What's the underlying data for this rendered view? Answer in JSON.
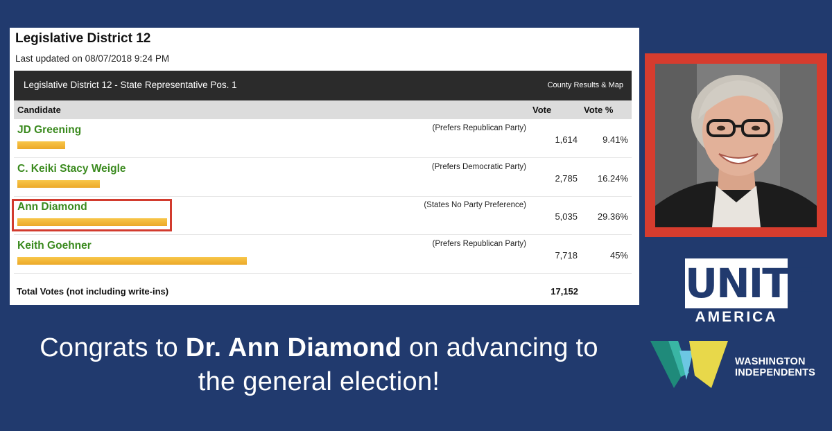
{
  "results": {
    "title": "Legislative District 12",
    "updated": "Last updated on 08/07/2018 9:24 PM",
    "race_title": "Legislative District 12 - State Representative Pos. 1",
    "race_link": "County Results & Map",
    "columns": {
      "candidate": "Candidate",
      "vote": "Vote",
      "vote_pct": "Vote %"
    },
    "candidates": [
      {
        "name": "JD Greening",
        "party": "(Prefers Republican Party)",
        "votes": "1,614",
        "pct": "9.41%",
        "share": 0.0941
      },
      {
        "name": "C. Keiki Stacy Weigle",
        "party": "(Prefers Democratic Party)",
        "votes": "2,785",
        "pct": "16.24%",
        "share": 0.1624
      },
      {
        "name": "Ann Diamond",
        "party": "(States No Party Preference)",
        "votes": "5,035",
        "pct": "29.36%",
        "share": 0.2936
      },
      {
        "name": "Keith Goehner",
        "party": "(Prefers Republican Party)",
        "votes": "7,718",
        "pct": "45%",
        "share": 0.45
      }
    ],
    "total_label": "Total Votes (not including write-ins)",
    "total_value": "17,152"
  },
  "headline": {
    "part1": "Congrats to ",
    "bold": "Dr. Ann Diamond",
    "part2": " on advancing to the general election!"
  },
  "logos": {
    "unite": "UNITE",
    "america": "AMERICA",
    "wi_line1": "WASHINGTON",
    "wi_line2": "INDEPENDENTS"
  },
  "colors": {
    "background": "#213a6e",
    "candidate_green": "#3a8a1e",
    "bar_gold": "#f0b030",
    "highlight_red": "#d23b2e"
  }
}
